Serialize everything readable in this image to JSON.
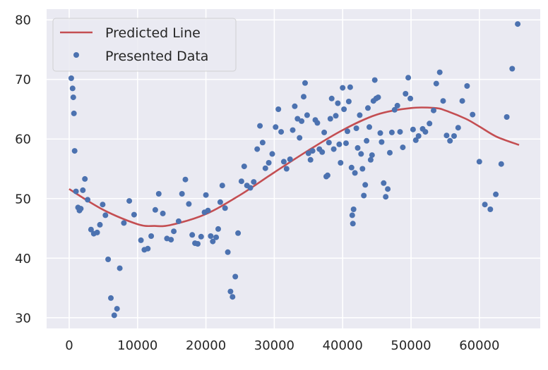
{
  "chart_data": {
    "type": "scatter",
    "title": "",
    "xlabel": "",
    "ylabel": "",
    "xlim": [
      -3300,
      68900
    ],
    "ylim": [
      28.2,
      81.8
    ],
    "x_ticks": [
      0,
      10000,
      20000,
      30000,
      40000,
      50000,
      60000
    ],
    "y_ticks": [
      30,
      40,
      50,
      60,
      70,
      80
    ],
    "grid": true,
    "legend_placement": "top-left",
    "background_color": "#eaeaf2",
    "series": [
      {
        "name": "Predicted Line",
        "kind": "line",
        "color": "#c44e52",
        "x": [
          0,
          5000,
          10000,
          12500,
          15000,
          20000,
          25000,
          30000,
          35000,
          40000,
          45000,
          50000,
          53500,
          55000,
          58000,
          60000,
          62500,
          65800
        ],
        "y": [
          51.6,
          48.1,
          45.7,
          45.4,
          45.6,
          47.4,
          50.6,
          54.4,
          58.1,
          61.5,
          64.1,
          65.2,
          65.2,
          64.8,
          63.4,
          62.1,
          60.4,
          59.0
        ]
      },
      {
        "name": "Presented Data",
        "kind": "points",
        "color": "#4c72b0",
        "points": [
          [
            300,
            70.2
          ],
          [
            500,
            68.5
          ],
          [
            600,
            67.0
          ],
          [
            700,
            64.3
          ],
          [
            800,
            58.0
          ],
          [
            1000,
            51.2
          ],
          [
            1300,
            48.5
          ],
          [
            1500,
            48.0
          ],
          [
            1700,
            48.3
          ],
          [
            2000,
            51.4
          ],
          [
            2300,
            53.3
          ],
          [
            2700,
            49.8
          ],
          [
            3200,
            44.8
          ],
          [
            3600,
            44.1
          ],
          [
            4100,
            44.3
          ],
          [
            4500,
            45.6
          ],
          [
            4900,
            49.0
          ],
          [
            5300,
            47.2
          ],
          [
            5700,
            39.8
          ],
          [
            6100,
            33.3
          ],
          [
            6600,
            30.4
          ],
          [
            7000,
            31.5
          ],
          [
            7400,
            38.3
          ],
          [
            8000,
            45.9
          ],
          [
            8800,
            49.6
          ],
          [
            9500,
            47.3
          ],
          [
            10500,
            43.0
          ],
          [
            11000,
            41.4
          ],
          [
            11500,
            41.6
          ],
          [
            12000,
            43.7
          ],
          [
            12600,
            48.1
          ],
          [
            13100,
            50.8
          ],
          [
            13700,
            47.5
          ],
          [
            14300,
            43.3
          ],
          [
            14900,
            43.1
          ],
          [
            15300,
            44.5
          ],
          [
            16000,
            46.2
          ],
          [
            16500,
            50.8
          ],
          [
            17000,
            53.2
          ],
          [
            17500,
            49.1
          ],
          [
            18000,
            43.9
          ],
          [
            18400,
            42.5
          ],
          [
            18800,
            42.4
          ],
          [
            19300,
            43.6
          ],
          [
            19800,
            47.7
          ],
          [
            20000,
            50.6
          ],
          [
            20300,
            48.0
          ],
          [
            20700,
            43.7
          ],
          [
            21000,
            42.8
          ],
          [
            21500,
            43.5
          ],
          [
            21800,
            44.9
          ],
          [
            22100,
            49.4
          ],
          [
            22400,
            52.2
          ],
          [
            22800,
            48.4
          ],
          [
            23200,
            41.0
          ],
          [
            23600,
            34.4
          ],
          [
            23900,
            33.5
          ],
          [
            24300,
            36.9
          ],
          [
            24700,
            44.2
          ],
          [
            25200,
            52.9
          ],
          [
            25600,
            55.4
          ],
          [
            26000,
            52.2
          ],
          [
            26500,
            51.8
          ],
          [
            27000,
            52.8
          ],
          [
            27500,
            58.3
          ],
          [
            27900,
            62.2
          ],
          [
            28300,
            59.4
          ],
          [
            28700,
            55.1
          ],
          [
            29200,
            56.0
          ],
          [
            29700,
            57.5
          ],
          [
            30200,
            62.0
          ],
          [
            30600,
            65.0
          ],
          [
            31000,
            61.2
          ],
          [
            31400,
            56.2
          ],
          [
            31800,
            55.0
          ],
          [
            32300,
            56.6
          ],
          [
            32700,
            61.5
          ],
          [
            33000,
            65.5
          ],
          [
            33400,
            63.4
          ],
          [
            33700,
            60.2
          ],
          [
            34000,
            63.0
          ],
          [
            34300,
            67.1
          ],
          [
            34500,
            69.4
          ],
          [
            34800,
            64.0
          ],
          [
            35000,
            57.6
          ],
          [
            35300,
            56.5
          ],
          [
            35600,
            58.0
          ],
          [
            36000,
            63.2
          ],
          [
            36300,
            62.7
          ],
          [
            36600,
            58.3
          ],
          [
            37000,
            57.8
          ],
          [
            37300,
            61.1
          ],
          [
            37600,
            53.7
          ],
          [
            37800,
            53.9
          ],
          [
            38000,
            59.4
          ],
          [
            38200,
            63.4
          ],
          [
            38400,
            66.8
          ],
          [
            38700,
            58.3
          ],
          [
            39000,
            63.9
          ],
          [
            39300,
            66.0
          ],
          [
            39500,
            59.1
          ],
          [
            39700,
            56.0
          ],
          [
            40000,
            68.6
          ],
          [
            40200,
            65.0
          ],
          [
            40500,
            59.3
          ],
          [
            40700,
            61.3
          ],
          [
            40900,
            66.3
          ],
          [
            41100,
            68.7
          ],
          [
            41300,
            55.2
          ],
          [
            41400,
            47.2
          ],
          [
            41500,
            45.8
          ],
          [
            41600,
            48.2
          ],
          [
            41800,
            54.3
          ],
          [
            42000,
            61.8
          ],
          [
            42200,
            58.5
          ],
          [
            42500,
            64.0
          ],
          [
            42700,
            57.5
          ],
          [
            42900,
            55.0
          ],
          [
            43100,
            50.5
          ],
          [
            43300,
            52.3
          ],
          [
            43500,
            59.7
          ],
          [
            43700,
            65.2
          ],
          [
            43900,
            62.0
          ],
          [
            44100,
            56.5
          ],
          [
            44300,
            57.3
          ],
          [
            44500,
            66.4
          ],
          [
            44700,
            69.9
          ],
          [
            44900,
            66.8
          ],
          [
            45200,
            67.0
          ],
          [
            45500,
            61.0
          ],
          [
            45700,
            59.5
          ],
          [
            46000,
            52.6
          ],
          [
            46300,
            50.3
          ],
          [
            46600,
            51.6
          ],
          [
            46900,
            57.7
          ],
          [
            47200,
            61.1
          ],
          [
            47600,
            64.9
          ],
          [
            48000,
            65.6
          ],
          [
            48400,
            61.2
          ],
          [
            48800,
            58.6
          ],
          [
            49200,
            67.6
          ],
          [
            49600,
            70.3
          ],
          [
            49900,
            66.8
          ],
          [
            50300,
            61.6
          ],
          [
            50700,
            59.8
          ],
          [
            51100,
            60.5
          ],
          [
            51700,
            61.7
          ],
          [
            52100,
            61.2
          ],
          [
            52700,
            62.6
          ],
          [
            53300,
            64.8
          ],
          [
            53700,
            69.3
          ],
          [
            54200,
            71.2
          ],
          [
            54700,
            66.4
          ],
          [
            55200,
            60.6
          ],
          [
            55700,
            59.7
          ],
          [
            56300,
            60.5
          ],
          [
            56900,
            61.9
          ],
          [
            57500,
            66.4
          ],
          [
            58200,
            68.9
          ],
          [
            59000,
            64.1
          ],
          [
            60000,
            56.2
          ],
          [
            60800,
            49.0
          ],
          [
            61600,
            48.2
          ],
          [
            62400,
            50.7
          ],
          [
            63200,
            55.8
          ],
          [
            64000,
            63.7
          ],
          [
            64800,
            71.8
          ],
          [
            65600,
            79.3
          ]
        ]
      }
    ]
  }
}
